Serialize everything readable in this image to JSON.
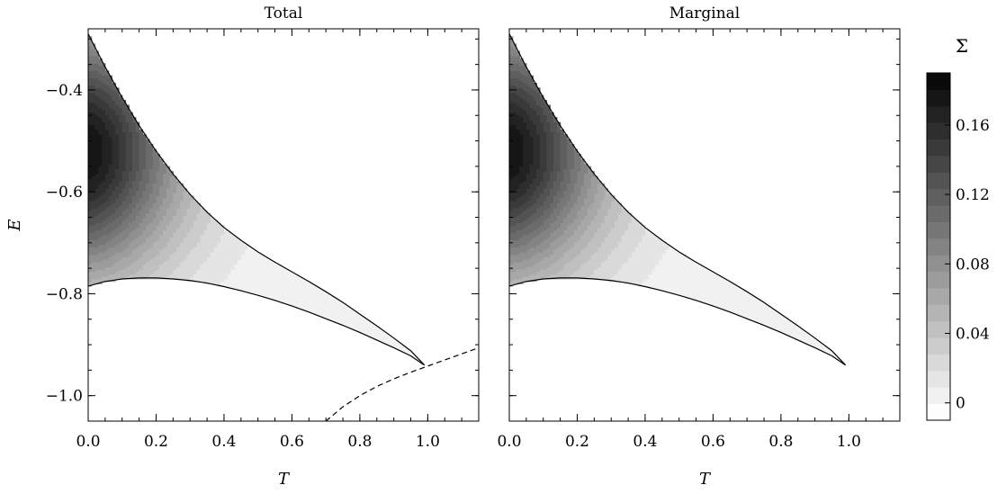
{
  "chart_data": {
    "type": "contour",
    "panels": [
      {
        "id": "total",
        "title": "Total",
        "show_ylabel": true,
        "show_yticks": true,
        "dashed_curve": true
      },
      {
        "id": "marginal",
        "title": "Marginal",
        "show_ylabel": false,
        "show_yticks": false,
        "dashed_curve": false
      }
    ],
    "xlabel": "T",
    "ylabel": "E",
    "xlim": [
      0.0,
      1.15
    ],
    "ylim": [
      -1.05,
      -0.28
    ],
    "xticks": [
      0.0,
      0.2,
      0.4,
      0.6,
      0.8,
      1.0
    ],
    "xtick_labels": [
      "0.0",
      "0.2",
      "0.4",
      "0.6",
      "0.8",
      "1.0"
    ],
    "yticks": [
      -0.4,
      -0.6,
      -0.8,
      -1.0
    ],
    "ytick_labels": [
      "−0.4",
      "−0.6",
      "−0.8",
      "−1.0"
    ],
    "upper_boundary": {
      "T": [
        0.0,
        0.05,
        0.1,
        0.15,
        0.2,
        0.25,
        0.3,
        0.35,
        0.4,
        0.45,
        0.5,
        0.55,
        0.6,
        0.65,
        0.7,
        0.75,
        0.8,
        0.85,
        0.9,
        0.95,
        0.99
      ],
      "E": [
        -0.29,
        -0.355,
        -0.415,
        -0.47,
        -0.52,
        -0.565,
        -0.605,
        -0.64,
        -0.67,
        -0.695,
        -0.718,
        -0.738,
        -0.757,
        -0.776,
        -0.796,
        -0.817,
        -0.84,
        -0.863,
        -0.887,
        -0.912,
        -0.94
      ]
    },
    "lower_boundary": {
      "T": [
        0.0,
        0.05,
        0.1,
        0.15,
        0.2,
        0.25,
        0.3,
        0.35,
        0.4,
        0.45,
        0.5,
        0.55,
        0.6,
        0.65,
        0.7,
        0.75,
        0.8,
        0.85,
        0.9,
        0.95,
        0.99
      ],
      "E": [
        -0.785,
        -0.776,
        -0.771,
        -0.769,
        -0.769,
        -0.771,
        -0.774,
        -0.779,
        -0.786,
        -0.794,
        -0.803,
        -0.813,
        -0.824,
        -0.836,
        -0.849,
        -0.862,
        -0.876,
        -0.891,
        -0.906,
        -0.922,
        -0.94
      ]
    },
    "dashed_curve": {
      "T": [
        0.7,
        0.75,
        0.8,
        0.85,
        0.9,
        0.95,
        1.0,
        1.05,
        1.1,
        1.15
      ],
      "E": [
        -1.05,
        -1.022,
        -1.0,
        -0.982,
        -0.967,
        -0.954,
        -0.942,
        -0.93,
        -0.918,
        -0.906
      ]
    },
    "sigma_peak": {
      "T": 0.0,
      "E": -0.52,
      "value": 0.19
    },
    "colorbar": {
      "title": "Σ",
      "min": -0.01,
      "max": 0.19,
      "levels": 21,
      "ticks": [
        0,
        0.04,
        0.08,
        0.12,
        0.16
      ],
      "tick_labels": [
        "0",
        "0.04",
        "0.08",
        "0.12",
        "0.16"
      ],
      "colormap": "Greys"
    }
  }
}
